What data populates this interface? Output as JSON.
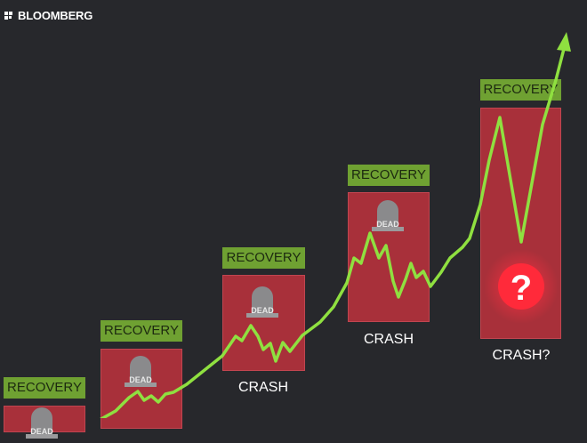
{
  "brand": "BLOOMBERG",
  "colors": {
    "background": "#27282c",
    "recovery": "#6fa132",
    "crash": "#a8303a",
    "line": "#8fe040",
    "question": "#ff2a3a"
  },
  "stages": [
    {
      "recovery": "RECOVERY",
      "tomb": "DEAD",
      "crash": ""
    },
    {
      "recovery": "RECOVERY",
      "tomb": "DEAD",
      "crash": ""
    },
    {
      "recovery": "RECOVERY",
      "tomb": "DEAD",
      "crash": "CRASH"
    },
    {
      "recovery": "RECOVERY",
      "tomb": "DEAD",
      "crash": "CRASH"
    },
    {
      "recovery": "RECOVERY",
      "symbol": "?",
      "crash": "CRASH?"
    }
  ]
}
